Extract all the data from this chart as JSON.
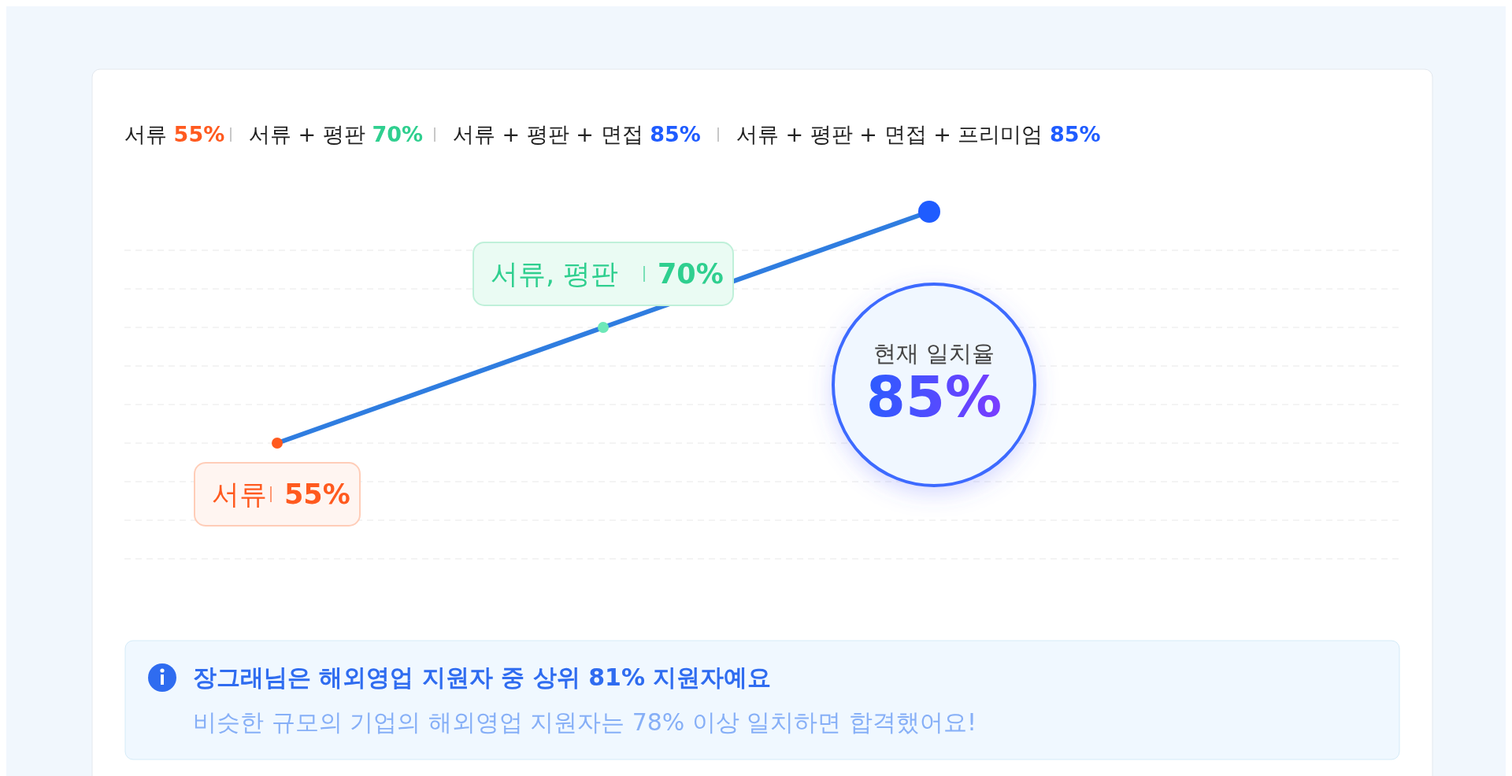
{
  "chart_data": {
    "type": "line",
    "categories": [
      null,
      null,
      null
    ],
    "series": [
      {
        "color": "#2f7de0",
        "colors": [
          "#ff5a1f",
          "#6ee8b8",
          "#1f5cff"
        ],
        "values": [
          55,
          70,
          85
        ],
        "value_labels": [
          "55%",
          "70%",
          "85%"
        ]
      }
    ],
    "yticks": [
      {
        "value": 40,
        "label": null
      },
      {
        "value": 45,
        "label": null
      },
      {
        "value": 50,
        "label": null
      },
      {
        "value": 55,
        "label": null
      },
      {
        "value": 60,
        "label": null
      },
      {
        "value": 65,
        "label": null
      },
      {
        "value": 70,
        "label": null
      },
      {
        "value": 75,
        "label": null
      },
      {
        "value": 80,
        "label": null
      }
    ],
    "grid": "y",
    "marker": "circle",
    "line_style": "solid",
    "annotations": [
      "서류 55%",
      "서류 + 평판 70%",
      "서류 + 평판 + 면접 85%",
      "서류 + 평판 + 면접 + 프리미엄 85%",
      "장그래님은 해외영업 지원자 중 상위 81% 지원자예요",
      "비슷한 규모의 기업의 해외영업 지원자는 78% 이상 일치하면 합격했어요!",
      "서류",
      "서류, 평판",
      "현재 일치율"
    ]
  }
}
